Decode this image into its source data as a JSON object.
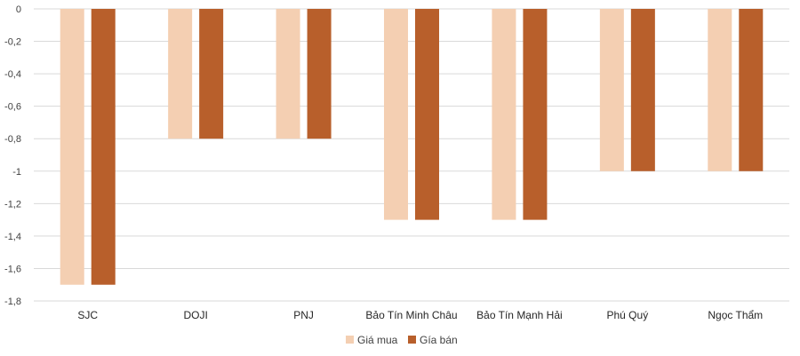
{
  "chart_data": {
    "type": "bar",
    "categories": [
      "SJC",
      "DOJI",
      "PNJ",
      "Bảo Tín Minh Châu",
      "Bảo Tín Mạnh Hải",
      "Phú Quý",
      "Ngọc Thẩm"
    ],
    "series": [
      {
        "name": "Giá mua",
        "values": [
          -1.7,
          -0.8,
          -0.8,
          -1.3,
          -1.3,
          -1.0,
          -1.0
        ],
        "color": "#F4CFB2"
      },
      {
        "name": "Gía bán",
        "values": [
          -1.7,
          -0.8,
          -0.8,
          -1.3,
          -1.3,
          -1.0,
          -1.0
        ],
        "color": "#B85F2B"
      }
    ],
    "yticks": [
      "0",
      "-0,2",
      "-0,4",
      "-0,6",
      "-0,8",
      "-1",
      "-1,2",
      "-1,4",
      "-1,6",
      "-1,8"
    ],
    "ylim": [
      -1.8,
      0
    ],
    "grid": true,
    "legend_position": "bottom"
  }
}
